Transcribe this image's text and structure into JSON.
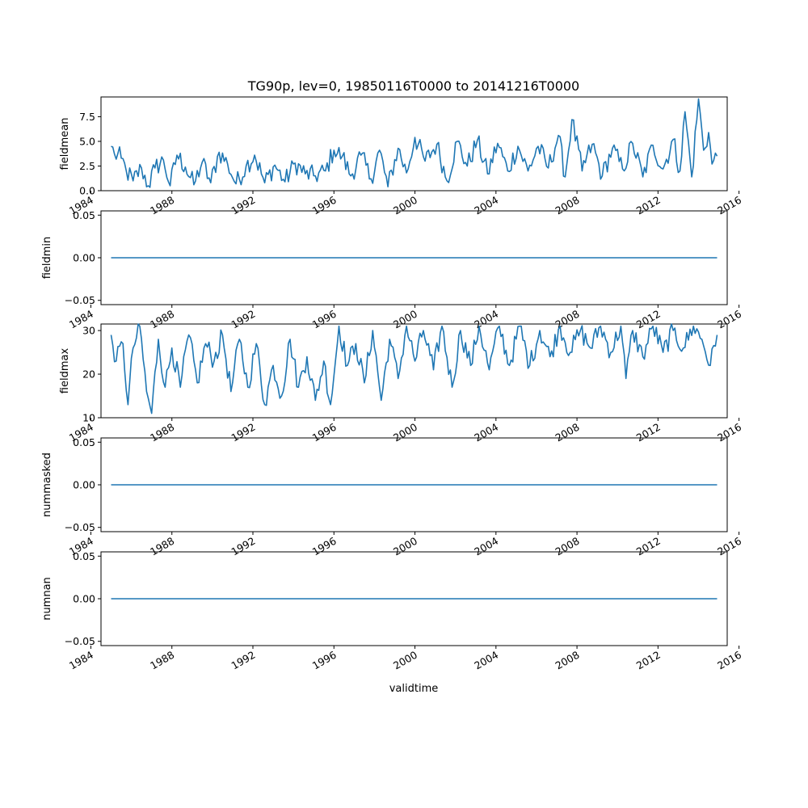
{
  "chart_data": {
    "type": "line",
    "title": "TG90p, lev=0, 19850116T0000 to 20141216T0000",
    "xlabel": "validtime",
    "x_start": "1985-01",
    "x_end": "2014-12",
    "x_step": "1 month",
    "x_ticks": [
      "1984",
      "1988",
      "1992",
      "1996",
      "2000",
      "2004",
      "2008",
      "2012",
      "2016"
    ],
    "xlim": [
      "1984-07",
      "2015-06"
    ],
    "line_color": "#1f77b4",
    "panels": [
      {
        "ylabel": "fieldmean",
        "ylim": [
          0,
          9.5
        ],
        "yticks": [
          "0.0",
          "2.5",
          "5.0",
          "7.5"
        ],
        "keypoints": [
          [
            "1985-01",
            4.5
          ],
          [
            "1985-03",
            3.7
          ],
          [
            "1985-07",
            3.3
          ],
          [
            "1985-10",
            2.0
          ],
          [
            "1986-02",
            1.0
          ],
          [
            "1986-07",
            2.3
          ],
          [
            "1986-11",
            0.5
          ],
          [
            "1987-03",
            2.3
          ],
          [
            "1987-08",
            3.1
          ],
          [
            "1987-12",
            0.5
          ],
          [
            "1988-04",
            3.6
          ],
          [
            "1988-09",
            2.4
          ],
          [
            "1989-02",
            0.6
          ],
          [
            "1989-07",
            2.9
          ],
          [
            "1989-12",
            0.8
          ],
          [
            "1990-05",
            3.9
          ],
          [
            "1990-10",
            2.7
          ],
          [
            "1991-03",
            0.7
          ],
          [
            "1991-09",
            2.5
          ],
          [
            "1992-02",
            3.6
          ],
          [
            "1992-08",
            0.8
          ],
          [
            "1993-02",
            2.6
          ],
          [
            "1993-08",
            0.9
          ],
          [
            "1994-02",
            2.8
          ],
          [
            "1994-08",
            1.7
          ],
          [
            "1995-02",
            1.5
          ],
          [
            "1995-08",
            2.0
          ],
          [
            "1996-01",
            4.1
          ],
          [
            "1996-06",
            3.5
          ],
          [
            "1996-11",
            1.5
          ],
          [
            "1997-05",
            3.6
          ],
          [
            "1997-11",
            1.2
          ],
          [
            "1998-04",
            4.1
          ],
          [
            "1998-09",
            0.4
          ],
          [
            "1999-03",
            4.3
          ],
          [
            "1999-08",
            1.8
          ],
          [
            "2000-01",
            5.4
          ],
          [
            "2000-07",
            3.0
          ],
          [
            "2001-02",
            4.7
          ],
          [
            "2001-08",
            1.0
          ],
          [
            "2002-02",
            5.0
          ],
          [
            "2002-08",
            2.5
          ],
          [
            "2003-02",
            5.1
          ],
          [
            "2003-08",
            1.7
          ],
          [
            "2004-02",
            4.8
          ],
          [
            "2004-08",
            2.0
          ],
          [
            "2005-02",
            4.5
          ],
          [
            "2005-08",
            2.0
          ],
          [
            "2006-02",
            4.5
          ],
          [
            "2006-08",
            2.3
          ],
          [
            "2007-02",
            5.6
          ],
          [
            "2007-06",
            1.4
          ],
          [
            "2007-10",
            7.2
          ],
          [
            "2008-04",
            2.0
          ],
          [
            "2008-10",
            4.7
          ],
          [
            "2009-04",
            1.5
          ],
          [
            "2009-10",
            4.3
          ],
          [
            "2010-04",
            2.2
          ],
          [
            "2010-10",
            4.8
          ],
          [
            "2011-04",
            1.4
          ],
          [
            "2011-10",
            4.6
          ],
          [
            "2012-04",
            2.2
          ],
          [
            "2012-10",
            5.2
          ],
          [
            "2013-02",
            2.0
          ],
          [
            "2013-05",
            8.0
          ],
          [
            "2013-09",
            1.4
          ],
          [
            "2014-01",
            9.3
          ],
          [
            "2014-04",
            4.1
          ],
          [
            "2014-07",
            5.9
          ],
          [
            "2014-09",
            2.7
          ],
          [
            "2014-12",
            3.5
          ]
        ]
      },
      {
        "ylabel": "fieldmin",
        "ylim": [
          -0.055,
          0.055
        ],
        "yticks": [
          "−0.05",
          "0.00",
          "0.05"
        ],
        "constant": 0.0
      },
      {
        "ylabel": "fieldmax",
        "ylim": [
          10,
          31.5
        ],
        "yticks": [
          "10",
          "20",
          "30"
        ],
        "keypoints": [
          [
            "1985-01",
            29
          ],
          [
            "1985-04",
            23
          ],
          [
            "1985-08",
            27
          ],
          [
            "1985-11",
            13
          ],
          [
            "1986-02",
            26
          ],
          [
            "1986-06",
            31
          ],
          [
            "1986-10",
            16
          ],
          [
            "1987-01",
            11
          ],
          [
            "1987-05",
            28
          ],
          [
            "1987-09",
            17
          ],
          [
            "1988-01",
            26
          ],
          [
            "1988-06",
            17
          ],
          [
            "1988-11",
            29
          ],
          [
            "1989-04",
            18
          ],
          [
            "1989-09",
            27
          ],
          [
            "1990-02",
            23
          ],
          [
            "1990-07",
            29
          ],
          [
            "1990-12",
            16
          ],
          [
            "1991-05",
            28
          ],
          [
            "1991-10",
            17
          ],
          [
            "1992-03",
            27
          ],
          [
            "1992-08",
            13
          ],
          [
            "1993-01",
            22
          ],
          [
            "1993-06",
            15
          ],
          [
            "1993-11",
            28
          ],
          [
            "1994-04",
            17
          ],
          [
            "1994-09",
            24
          ],
          [
            "1995-02",
            14
          ],
          [
            "1995-07",
            23
          ],
          [
            "1995-11",
            13
          ],
          [
            "1996-04",
            31
          ],
          [
            "1996-09",
            22
          ],
          [
            "1997-02",
            27
          ],
          [
            "1997-07",
            18
          ],
          [
            "1997-12",
            30
          ],
          [
            "1998-05",
            14
          ],
          [
            "1998-10",
            28
          ],
          [
            "1999-03",
            19
          ],
          [
            "1999-08",
            31
          ],
          [
            "2000-01",
            23
          ],
          [
            "2000-06",
            30
          ],
          [
            "2000-12",
            21
          ],
          [
            "2001-05",
            31
          ],
          [
            "2001-11",
            17
          ],
          [
            "2002-04",
            30
          ],
          [
            "2002-10",
            22
          ],
          [
            "2003-03",
            31
          ],
          [
            "2003-09",
            21
          ],
          [
            "2004-03",
            31
          ],
          [
            "2004-09",
            22
          ],
          [
            "2005-03",
            31
          ],
          [
            "2005-09",
            22
          ],
          [
            "2006-03",
            30
          ],
          [
            "2006-09",
            24
          ],
          [
            "2007-03",
            31
          ],
          [
            "2007-09",
            25
          ],
          [
            "2008-03",
            30
          ],
          [
            "2008-09",
            26
          ],
          [
            "2009-03",
            31
          ],
          [
            "2009-09",
            25
          ],
          [
            "2010-03",
            31
          ],
          [
            "2010-06",
            19
          ],
          [
            "2010-10",
            30
          ],
          [
            "2011-04",
            24
          ],
          [
            "2011-10",
            31
          ],
          [
            "2012-04",
            25
          ],
          [
            "2012-10",
            30
          ],
          [
            "2013-04",
            26
          ],
          [
            "2013-10",
            31
          ],
          [
            "2014-03",
            28
          ],
          [
            "2014-08",
            22
          ],
          [
            "2014-12",
            29
          ]
        ]
      },
      {
        "ylabel": "nummasked",
        "ylim": [
          -0.055,
          0.055
        ],
        "yticks": [
          "−0.05",
          "0.00",
          "0.05"
        ],
        "constant": 0.0
      },
      {
        "ylabel": "numnan",
        "ylim": [
          -0.055,
          0.055
        ],
        "yticks": [
          "−0.05",
          "0.00",
          "0.05"
        ],
        "constant": 0.0
      }
    ]
  }
}
